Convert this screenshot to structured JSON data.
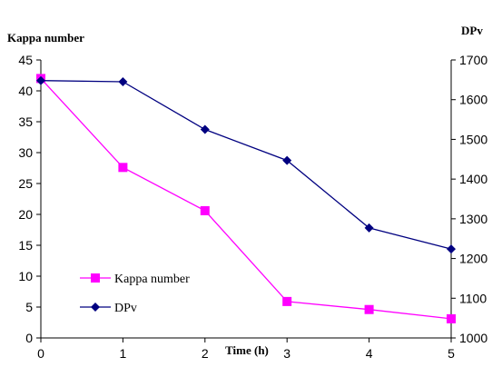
{
  "chart_data": {
    "type": "line",
    "title": "",
    "xlabel": "Time (h)",
    "ylabel_left": "Kappa number",
    "ylabel_right": "DPv",
    "x": [
      0,
      1,
      2,
      3,
      4,
      5
    ],
    "xlim": [
      0,
      5
    ],
    "ylim_left": [
      0,
      45
    ],
    "ylim_right": [
      1000,
      1700
    ],
    "x_ticks": [
      "0",
      "1",
      "2",
      "3",
      "4",
      "5"
    ],
    "y_ticks_left": [
      "0",
      "5",
      "10",
      "15",
      "20",
      "25",
      "30",
      "35",
      "40",
      "45"
    ],
    "y_ticks_right": [
      "1000",
      "1100",
      "1200",
      "1300",
      "1400",
      "1500",
      "1600",
      "1700"
    ],
    "grid": false,
    "legend_position": "bottom-left",
    "series": [
      {
        "name": "Kappa number",
        "axis": "left",
        "values": [
          42,
          27.6,
          20.6,
          5.9,
          4.6,
          3.1
        ],
        "color": "#ff00ff",
        "marker": "square"
      },
      {
        "name": "DPv",
        "axis": "right",
        "values": [
          1648,
          1645,
          1525,
          1447,
          1277,
          1224
        ],
        "color": "#000080",
        "marker": "diamond"
      }
    ]
  }
}
